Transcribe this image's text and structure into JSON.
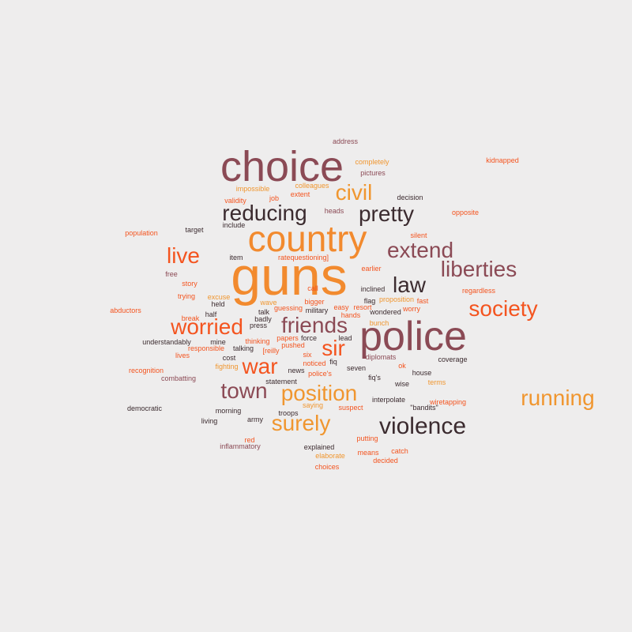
{
  "palette": {
    "background": "#eeeded",
    "dark": "#3b2b2f",
    "mauve": "#8b4a55",
    "orange": "#f28a2e",
    "amber": "#f0962f",
    "red_orange": "#f4541f"
  },
  "words": [
    {
      "text": "guns",
      "color": "#f28a2e"
    },
    {
      "text": "choice",
      "color": "#8b4a55"
    },
    {
      "text": "country",
      "color": "#f28a2e"
    },
    {
      "text": "police",
      "color": "#8b4a55"
    },
    {
      "text": "violence",
      "color": "#3b2b2f"
    },
    {
      "text": "running",
      "color": "#f0962f"
    },
    {
      "text": "liberties",
      "color": "#8b4a55"
    },
    {
      "text": "society",
      "color": "#f4541f"
    },
    {
      "text": "extend",
      "color": "#8b4a55"
    },
    {
      "text": "reducing",
      "color": "#3b2b2f"
    },
    {
      "text": "pretty",
      "color": "#3b2b2f"
    },
    {
      "text": "position",
      "color": "#f0962f"
    },
    {
      "text": "surely",
      "color": "#f0962f"
    },
    {
      "text": "friends",
      "color": "#8b4a55"
    },
    {
      "text": "worried",
      "color": "#f4541f"
    },
    {
      "text": "town",
      "color": "#8b4a55"
    },
    {
      "text": "live",
      "color": "#f4541f"
    },
    {
      "text": "civil",
      "color": "#f0962f"
    },
    {
      "text": "law",
      "color": "#3b2b2f"
    },
    {
      "text": "war",
      "color": "#f4541f"
    },
    {
      "text": "sir",
      "color": "#f4541f"
    },
    {
      "text": "address",
      "color": "#8b4a55"
    },
    {
      "text": "kidnapped",
      "color": "#f4541f"
    },
    {
      "text": "completely",
      "color": "#f0962f"
    },
    {
      "text": "pictures",
      "color": "#8b4a55"
    },
    {
      "text": "colleagues",
      "color": "#f0962f"
    },
    {
      "text": "impossible",
      "color": "#f0962f"
    },
    {
      "text": "extent",
      "color": "#f4541f"
    },
    {
      "text": "decision",
      "color": "#3b2b2f"
    },
    {
      "text": "validity",
      "color": "#f4541f"
    },
    {
      "text": "job",
      "color": "#f4541f"
    },
    {
      "text": "heads",
      "color": "#8b4a55"
    },
    {
      "text": "opposite",
      "color": "#f4541f"
    },
    {
      "text": "target",
      "color": "#3b2b2f"
    },
    {
      "text": "include",
      "color": "#3b2b2f"
    },
    {
      "text": "population",
      "color": "#f4541f"
    },
    {
      "text": "silent",
      "color": "#f4541f"
    },
    {
      "text": "item",
      "color": "#3b2b2f"
    },
    {
      "text": "ratequestioning]",
      "color": "#f4541f"
    },
    {
      "text": "free",
      "color": "#8b4a55"
    },
    {
      "text": "earlier",
      "color": "#f4541f"
    },
    {
      "text": "story",
      "color": "#f4541f"
    },
    {
      "text": "call",
      "color": "#f4541f"
    },
    {
      "text": "inclined",
      "color": "#3b2b2f"
    },
    {
      "text": "trying",
      "color": "#f4541f"
    },
    {
      "text": "excuse",
      "color": "#f0962f"
    },
    {
      "text": "bigger",
      "color": "#f4541f"
    },
    {
      "text": "flag",
      "color": "#3b2b2f"
    },
    {
      "text": "proposition",
      "color": "#f0962f"
    },
    {
      "text": "fast",
      "color": "#f4541f"
    },
    {
      "text": "regardless",
      "color": "#f4541f"
    },
    {
      "text": "held",
      "color": "#3b2b2f"
    },
    {
      "text": "wave",
      "color": "#f0962f"
    },
    {
      "text": "abductors",
      "color": "#f4541f"
    },
    {
      "text": "guessing",
      "color": "#f4541f"
    },
    {
      "text": "easy",
      "color": "#f4541f"
    },
    {
      "text": "resort",
      "color": "#f4541f"
    },
    {
      "text": "worry",
      "color": "#f4541f"
    },
    {
      "text": "half",
      "color": "#3b2b2f"
    },
    {
      "text": "talk",
      "color": "#3b2b2f"
    },
    {
      "text": "military",
      "color": "#3b2b2f"
    },
    {
      "text": "hands",
      "color": "#f4541f"
    },
    {
      "text": "wondered",
      "color": "#3b2b2f"
    },
    {
      "text": "break",
      "color": "#f4541f"
    },
    {
      "text": "badly",
      "color": "#3b2b2f"
    },
    {
      "text": "bunch",
      "color": "#f0962f"
    },
    {
      "text": "understandably",
      "color": "#3b2b2f"
    },
    {
      "text": "mine",
      "color": "#3b2b2f"
    },
    {
      "text": "thinking",
      "color": "#f4541f"
    },
    {
      "text": "press",
      "color": "#3b2b2f"
    },
    {
      "text": "papers",
      "color": "#f4541f"
    },
    {
      "text": "force",
      "color": "#3b2b2f"
    },
    {
      "text": "lead",
      "color": "#3b2b2f"
    },
    {
      "text": "responsible",
      "color": "#f4541f"
    },
    {
      "text": "talking",
      "color": "#3b2b2f"
    },
    {
      "text": "[reilly",
      "color": "#f4541f"
    },
    {
      "text": "pushed",
      "color": "#f4541f"
    },
    {
      "text": "lives",
      "color": "#f4541f"
    },
    {
      "text": "cost",
      "color": "#3b2b2f"
    },
    {
      "text": "six",
      "color": "#f4541f"
    },
    {
      "text": "fiq",
      "color": "#3b2b2f"
    },
    {
      "text": "diplomats",
      "color": "#8b4a55"
    },
    {
      "text": "coverage",
      "color": "#3b2b2f"
    },
    {
      "text": "fighting",
      "color": "#f0962f"
    },
    {
      "text": "noticed",
      "color": "#f4541f"
    },
    {
      "text": "ok",
      "color": "#f4541f"
    },
    {
      "text": "recognition",
      "color": "#f4541f"
    },
    {
      "text": "news",
      "color": "#3b2b2f"
    },
    {
      "text": "police's",
      "color": "#f4541f"
    },
    {
      "text": "seven",
      "color": "#3b2b2f"
    },
    {
      "text": "house",
      "color": "#3b2b2f"
    },
    {
      "text": "combatting",
      "color": "#8b4a55"
    },
    {
      "text": "fiq's",
      "color": "#3b2b2f"
    },
    {
      "text": "terms",
      "color": "#f0962f"
    },
    {
      "text": "statement",
      "color": "#3b2b2f"
    },
    {
      "text": "wise",
      "color": "#3b2b2f"
    },
    {
      "text": "wiretapping",
      "color": "#f4541f"
    },
    {
      "text": "interpolate",
      "color": "#3b2b2f"
    },
    {
      "text": "democratic",
      "color": "#3b2b2f"
    },
    {
      "text": "saying",
      "color": "#f0962f"
    },
    {
      "text": "suspect",
      "color": "#f4541f"
    },
    {
      "text": "\"bandits\"",
      "color": "#3b2b2f"
    },
    {
      "text": "morning",
      "color": "#3b2b2f"
    },
    {
      "text": "troops",
      "color": "#3b2b2f"
    },
    {
      "text": "army",
      "color": "#3b2b2f"
    },
    {
      "text": "living",
      "color": "#3b2b2f"
    },
    {
      "text": "putting",
      "color": "#f4541f"
    },
    {
      "text": "red",
      "color": "#f4541f"
    },
    {
      "text": "inflammatory",
      "color": "#8b4a55"
    },
    {
      "text": "explained",
      "color": "#3b2b2f"
    },
    {
      "text": "means",
      "color": "#f4541f"
    },
    {
      "text": "catch",
      "color": "#f4541f"
    },
    {
      "text": "elaborate",
      "color": "#f0962f"
    },
    {
      "text": "decided",
      "color": "#f4541f"
    },
    {
      "text": "choices",
      "color": "#f4541f"
    }
  ]
}
